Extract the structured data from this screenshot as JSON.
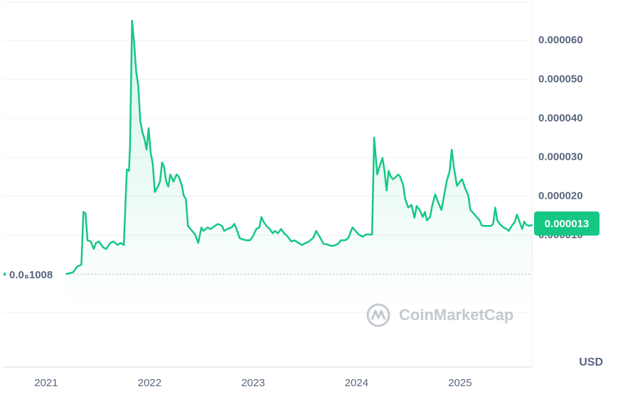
{
  "chart_data": {
    "type": "line",
    "series": [
      {
        "color": "#16c784",
        "x": [
          2021.19,
          2021.26,
          2021.3,
          2021.34,
          2021.36,
          2021.38,
          2021.4,
          2021.43,
          2021.46,
          2021.48,
          2021.51,
          2021.55,
          2021.58,
          2021.62,
          2021.65,
          2021.69,
          2021.72,
          2021.75,
          2021.78,
          2021.8,
          2021.81,
          2021.83,
          2021.85,
          2021.87,
          2021.89,
          2021.91,
          2021.93,
          2021.95,
          2021.97,
          2021.99,
          2022.01,
          2022.03,
          2022.05,
          2022.08,
          2022.1,
          2022.12,
          2022.14,
          2022.16,
          2022.18,
          2022.2,
          2022.23,
          2022.26,
          2022.28,
          2022.31,
          2022.33,
          2022.35,
          2022.37,
          2022.41,
          2022.44,
          2022.47,
          2022.5,
          2022.52,
          2022.56,
          2022.59,
          2022.63,
          2022.66,
          2022.7,
          2022.72,
          2022.75,
          2022.79,
          2022.82,
          2022.84,
          2022.87,
          2022.9,
          2022.94,
          2022.97,
          2023.0,
          2023.03,
          2023.06,
          2023.08,
          2023.1,
          2023.13,
          2023.16,
          2023.19,
          2023.21,
          2023.24,
          2023.27,
          2023.3,
          2023.33,
          2023.37,
          2023.4,
          2023.44,
          2023.47,
          2023.51,
          2023.54,
          2023.58,
          2023.61,
          2023.65,
          2023.68,
          2023.72,
          2023.75,
          2023.78,
          2023.82,
          2023.85,
          2023.89,
          2023.92,
          2023.96,
          2023.99,
          2024.02,
          2024.06,
          2024.09,
          2024.13,
          2024.15,
          2024.17,
          2024.2,
          2024.22,
          2024.25,
          2024.27,
          2024.29,
          2024.31,
          2024.33,
          2024.35,
          2024.37,
          2024.4,
          2024.42,
          2024.45,
          2024.47,
          2024.5,
          2024.53,
          2024.56,
          2024.58,
          2024.61,
          2024.64,
          2024.66,
          2024.68,
          2024.71,
          2024.73,
          2024.76,
          2024.79,
          2024.82,
          2024.84,
          2024.87,
          2024.9,
          2024.92,
          2024.94,
          2024.97,
          2025.0,
          2025.02,
          2025.05,
          2025.08,
          2025.1,
          2025.13,
          2025.16,
          2025.19,
          2025.21,
          2025.24,
          2025.27,
          2025.3,
          2025.32,
          2025.34,
          2025.36,
          2025.39,
          2025.42,
          2025.45,
          2025.47,
          2025.5,
          2025.53,
          2025.55,
          2025.57,
          2025.6,
          2025.62,
          2025.64,
          2025.67,
          2025.7
        ],
        "values": [
          1.008e-09,
          5e-07,
          2e-06,
          2.4e-06,
          1.6e-05,
          1.56e-05,
          8.7e-06,
          8.4e-06,
          6.5e-06,
          8e-06,
          8.4e-06,
          6.9e-06,
          6.5e-06,
          8e-06,
          8.4e-06,
          7.5e-06,
          8e-06,
          7.5e-06,
          2.69e-05,
          2.65e-05,
          3.27e-05,
          6.51e-05,
          5.93e-05,
          5.2e-05,
          4.84e-05,
          3.93e-05,
          3.65e-05,
          3.47e-05,
          3.2e-05,
          3.75e-05,
          3.11e-05,
          2.84e-05,
          2.11e-05,
          2.25e-05,
          2.38e-05,
          2.87e-05,
          2.75e-05,
          2.38e-05,
          2.25e-05,
          2.56e-05,
          2.38e-05,
          2.56e-05,
          2.51e-05,
          2.29e-05,
          2.02e-05,
          1.93e-05,
          1.24e-05,
          1.11e-05,
          1.02e-05,
          8e-06,
          1.2e-05,
          1.11e-05,
          1.2e-05,
          1.16e-05,
          1.24e-05,
          1.29e-05,
          1.24e-05,
          1.11e-05,
          1.16e-05,
          1.2e-05,
          1.29e-05,
          1.16e-05,
          9.3e-06,
          8.9e-06,
          8.7e-06,
          8.7e-06,
          9.8e-06,
          1.16e-05,
          1.2e-05,
          1.47e-05,
          1.35e-05,
          1.24e-05,
          1.16e-05,
          1.05e-05,
          1.11e-05,
          1.05e-05,
          1.16e-05,
          1.05e-05,
          9.8e-06,
          8.4e-06,
          8.7e-06,
          8e-06,
          7.5e-06,
          8e-06,
          8.4e-06,
          9.3e-06,
          1.11e-05,
          9.3e-06,
          7.8e-06,
          7.6e-06,
          7.3e-06,
          7.3e-06,
          7.8e-06,
          8.7e-06,
          8.7e-06,
          9.3e-06,
          1.2e-05,
          1.11e-05,
          1.02e-05,
          9.6e-06,
          1.02e-05,
          1.02e-05,
          1.02e-05,
          3.51e-05,
          2.56e-05,
          2.75e-05,
          2.98e-05,
          2.65e-05,
          2.15e-05,
          2.65e-05,
          2.51e-05,
          2.44e-05,
          2.47e-05,
          2.56e-05,
          2.51e-05,
          2.29e-05,
          1.93e-05,
          1.71e-05,
          1.78e-05,
          1.45e-05,
          1.75e-05,
          1.65e-05,
          1.47e-05,
          1.6e-05,
          1.38e-05,
          1.47e-05,
          1.75e-05,
          2.05e-05,
          1.84e-05,
          1.65e-05,
          1.93e-05,
          2.38e-05,
          2.65e-05,
          3.2e-05,
          2.75e-05,
          2.27e-05,
          2.38e-05,
          2.44e-05,
          2.2e-05,
          2.02e-05,
          1.65e-05,
          1.56e-05,
          1.47e-05,
          1.38e-05,
          1.25e-05,
          1.24e-05,
          1.24e-05,
          1.24e-05,
          1.29e-05,
          1.71e-05,
          1.38e-05,
          1.27e-05,
          1.2e-05,
          1.16e-05,
          1.11e-05,
          1.24e-05,
          1.35e-05,
          1.53e-05,
          1.38e-05,
          1.16e-05,
          1.35e-05,
          1.27e-05,
          1.24e-05,
          1.27e-05
        ]
      }
    ],
    "xlim": [
      2020.588,
      2025.695
    ],
    "xticks": [
      2021,
      2022,
      2023,
      2024,
      2025
    ],
    "ylim": [
      -9.8e-06,
      7.04e-05
    ],
    "yticks": [
      {
        "value": 1e-05,
        "label": "0.000010"
      },
      {
        "value": 2e-05,
        "label": "0.000020"
      },
      {
        "value": 3e-05,
        "label": "0.000030"
      },
      {
        "value": 4e-05,
        "label": "0.000040"
      },
      {
        "value": 5e-05,
        "label": "0.000050"
      },
      {
        "value": 6e-05,
        "label": "0.000060"
      }
    ],
    "grid": true,
    "current_price": 1.3e-05,
    "start_price": {
      "value": 1.008e-09,
      "label": "0.0₈1008"
    },
    "currency": "USD",
    "watermark": "CoinMarketCap"
  }
}
